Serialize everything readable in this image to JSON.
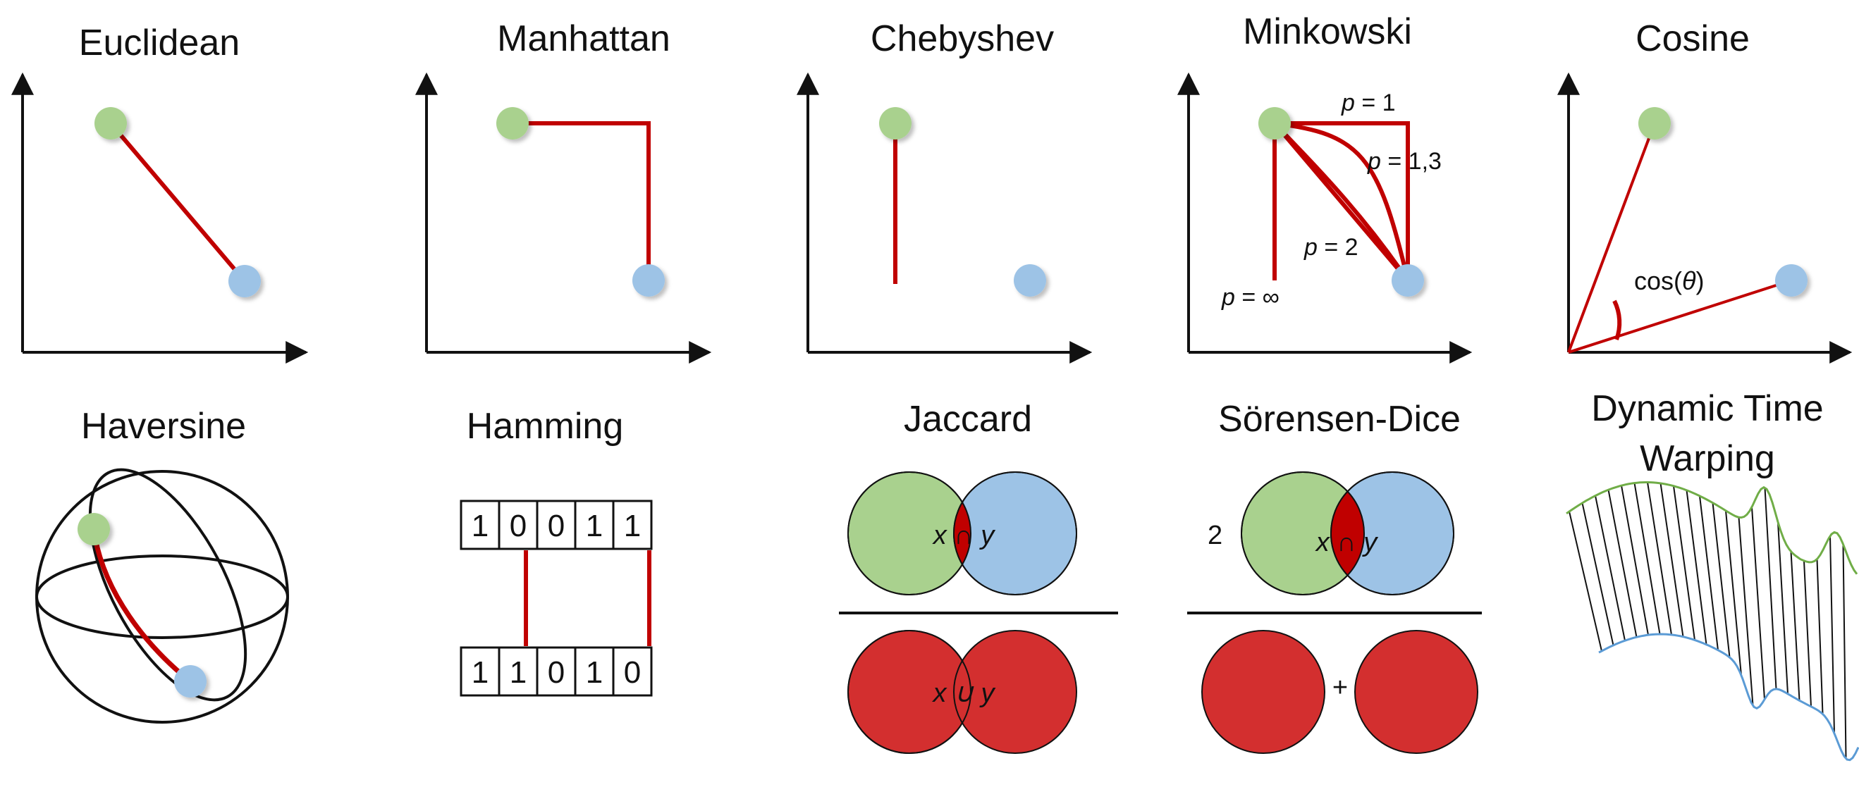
{
  "titles": {
    "euclidean": "Euclidean",
    "manhattan": "Manhattan",
    "chebyshev": "Chebyshev",
    "minkowski": "Minkowski",
    "cosine": "Cosine",
    "haversine": "Haversine",
    "hamming": "Hamming",
    "jaccard": "Jaccard",
    "sorensen_dice": "Sörensen-Dice",
    "dtw_line1": "Dynamic Time",
    "dtw_line2": "Warping"
  },
  "minkowski": {
    "p_var": "p",
    "p1": " = 1",
    "p13": " = 1,3",
    "p2": " = 2",
    "pinf": " = ∞"
  },
  "cosine": {
    "label_prefix": "cos(",
    "label_theta": "θ",
    "label_suffix": ")"
  },
  "hamming": {
    "top_bits": [
      "1",
      "0",
      "0",
      "1",
      "1"
    ],
    "bottom_bits": [
      "1",
      "1",
      "0",
      "1",
      "0"
    ]
  },
  "jaccard": {
    "intersection_label": "x ∩ y",
    "union_label": "x ∪ y"
  },
  "sorensen_dice": {
    "coefficient": "2",
    "intersection_label": "x ∩ y",
    "plus": "+"
  },
  "colors": {
    "green_point": "#a9d18e",
    "blue_point": "#9dc3e6",
    "red_line": "#c00000",
    "red_fill": "#d32f2f",
    "axis": "#111111",
    "green_curve": "#70ad47",
    "blue_curve": "#5b9bd5"
  }
}
